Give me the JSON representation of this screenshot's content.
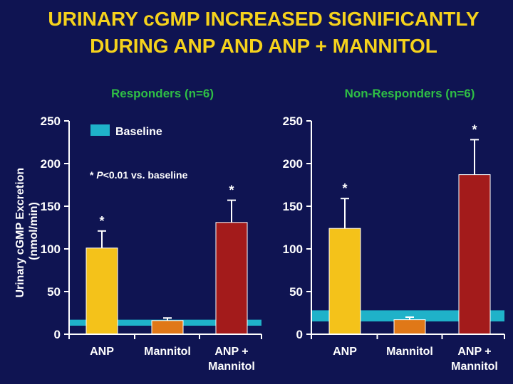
{
  "slide": {
    "title_line1": "URINARY cGMP INCREASED SIGNIFICANTLY",
    "title_line2": "DURING ANP AND ANP + MANNITOL",
    "note_star": "* ",
    "note_p": "P",
    "note_rest": "<0.01 vs. baseline"
  },
  "colors": {
    "background": "#0f1452",
    "title": "#f5d21c",
    "panel_title": "#2fbf45",
    "baseline": "#1fb2c9",
    "ANP": "#f4c21a",
    "Mannitol": "#e07818",
    "ANP + Mannitol": "#a31b1b",
    "axis": "#ffffff"
  },
  "chart_data": [
    {
      "type": "bar",
      "title": "Responders (n=6)",
      "ylabel": "Urinary cGMP Excretion (nmol/min)",
      "categories": [
        "ANP",
        "Mannitol",
        "ANP + Mannitol"
      ],
      "category_lines": [
        [
          "ANP"
        ],
        [
          "Mannitol"
        ],
        [
          "ANP +",
          "Mannitol"
        ]
      ],
      "values": [
        101,
        16,
        131
      ],
      "errors": [
        20,
        3,
        26
      ],
      "significant": [
        true,
        false,
        true
      ],
      "baseline_band": [
        10,
        17
      ],
      "baseline_label": "Baseline",
      "ylim": [
        0,
        250
      ],
      "yticks": [
        0,
        50,
        100,
        150,
        200,
        250
      ],
      "legend": "top-left"
    },
    {
      "type": "bar",
      "title": "Non-Responders (n=6)",
      "categories": [
        "ANP",
        "Mannitol",
        "ANP + Mannitol"
      ],
      "category_lines": [
        [
          "ANP"
        ],
        [
          "Mannitol"
        ],
        [
          "ANP +",
          "Mannitol"
        ]
      ],
      "values": [
        124,
        17,
        187
      ],
      "errors": [
        35,
        3,
        41
      ],
      "significant": [
        true,
        false,
        true
      ],
      "baseline_band": [
        15,
        28
      ],
      "ylim": [
        0,
        250
      ],
      "yticks": [
        0,
        50,
        100,
        150,
        200,
        250
      ]
    }
  ]
}
